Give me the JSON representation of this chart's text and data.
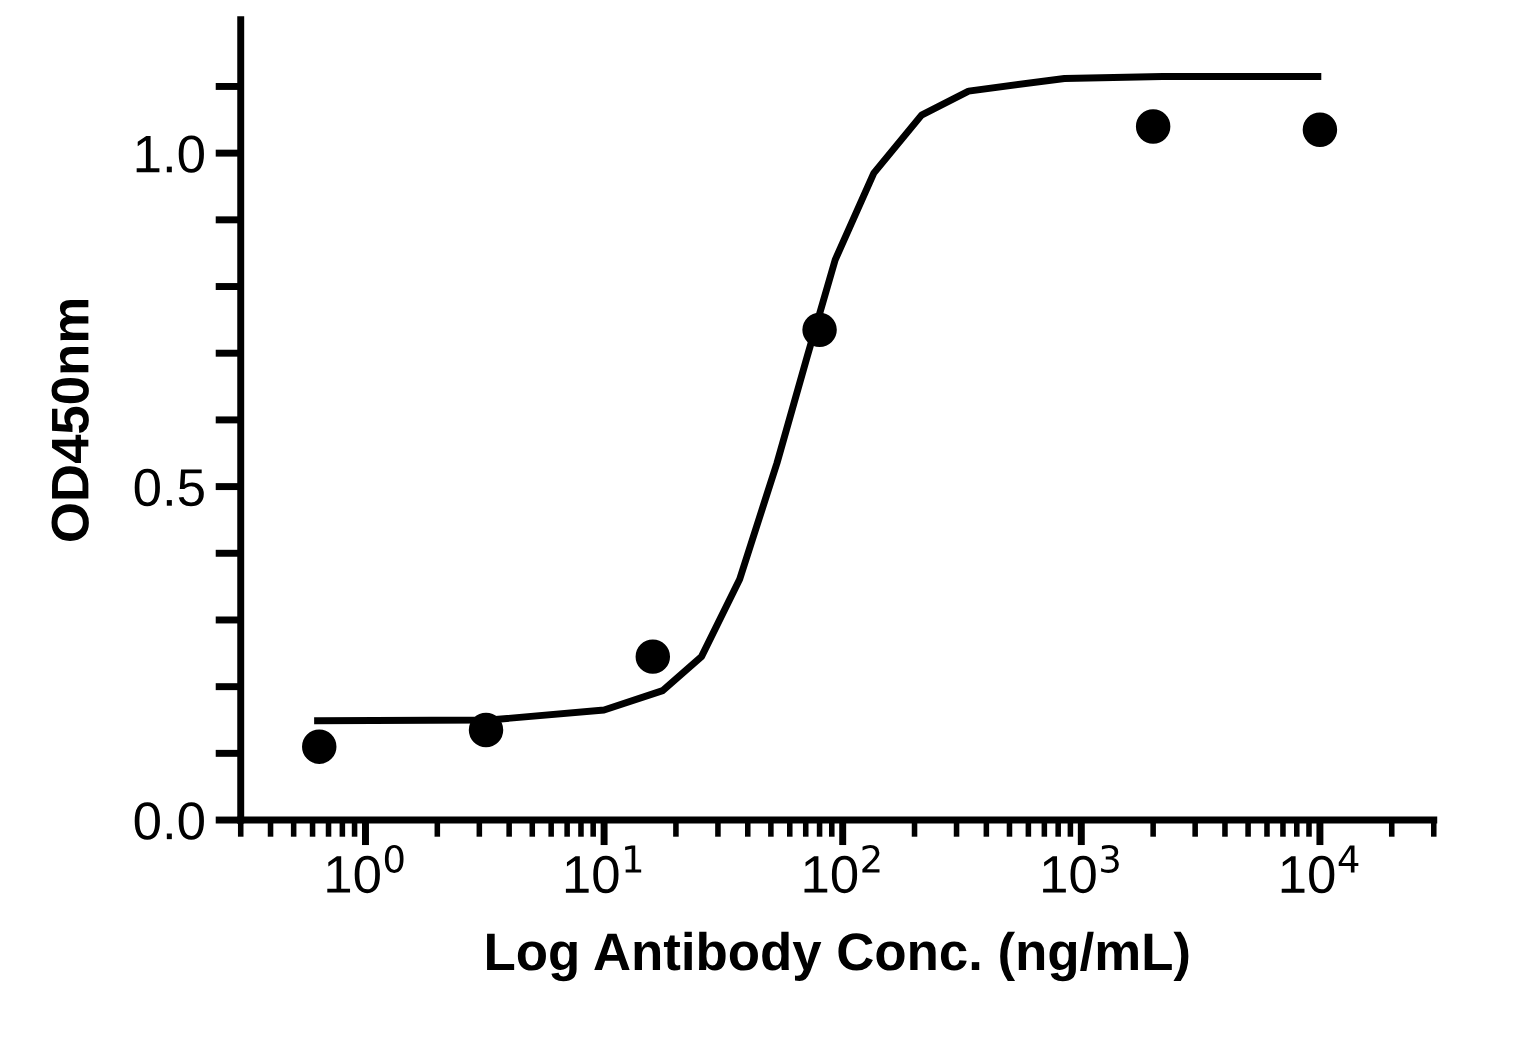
{
  "chart_data": {
    "type": "scatter",
    "xlabel": "Log Antibody Conc. (ng/mL)",
    "ylabel": "OD450nm",
    "log": "x",
    "xlim": [
      0.3,
      30000
    ],
    "xticks": [
      {
        "value": 1,
        "label": "10$^{0}$"
      },
      {
        "value": 10,
        "label": "10$^{1}$"
      },
      {
        "value": 100,
        "label": "10$^{2}$"
      },
      {
        "value": 1000,
        "label": "10$^{3}$"
      },
      {
        "value": 10000,
        "label": "10$^{4}$"
      }
    ],
    "ylim": [
      0,
      1.2
    ],
    "yticks": [
      {
        "value": 0,
        "label": "0.0"
      },
      {
        "value": 0.1,
        "label": null
      },
      {
        "value": 0.2,
        "label": null
      },
      {
        "value": 0.3,
        "label": null
      },
      {
        "value": 0.4,
        "label": null
      },
      {
        "value": 0.5,
        "label": "0.5"
      },
      {
        "value": 0.6,
        "label": null
      },
      {
        "value": 0.7,
        "label": null
      },
      {
        "value": 0.8,
        "label": null
      },
      {
        "value": 0.9,
        "label": null
      },
      {
        "value": 1.0,
        "label": "1.0"
      },
      {
        "value": 1.1,
        "label": null
      }
    ],
    "grid": false,
    "legend": false,
    "series": [
      {
        "color": "#000000",
        "marker": "circle",
        "x": [
          0.64,
          3.2,
          16,
          80,
          2000,
          10000
        ],
        "values": [
          0.11,
          0.135,
          0.245,
          0.735,
          1.04,
          1.035
        ]
      },
      {
        "type": "line",
        "color": "#000000",
        "marker": "none",
        "line_style": "solid",
        "x": [
          0.63,
          3.3,
          10,
          17.6,
          25.6,
          37,
          53,
          71,
          93,
          135,
          214,
          337,
          850,
          2190,
          9800
        ],
        "values": [
          0.149,
          0.15,
          0.165,
          0.194,
          0.245,
          0.361,
          0.535,
          0.695,
          0.84,
          0.97,
          1.057,
          1.093,
          1.112,
          1.115,
          1.115
        ]
      }
    ]
  }
}
